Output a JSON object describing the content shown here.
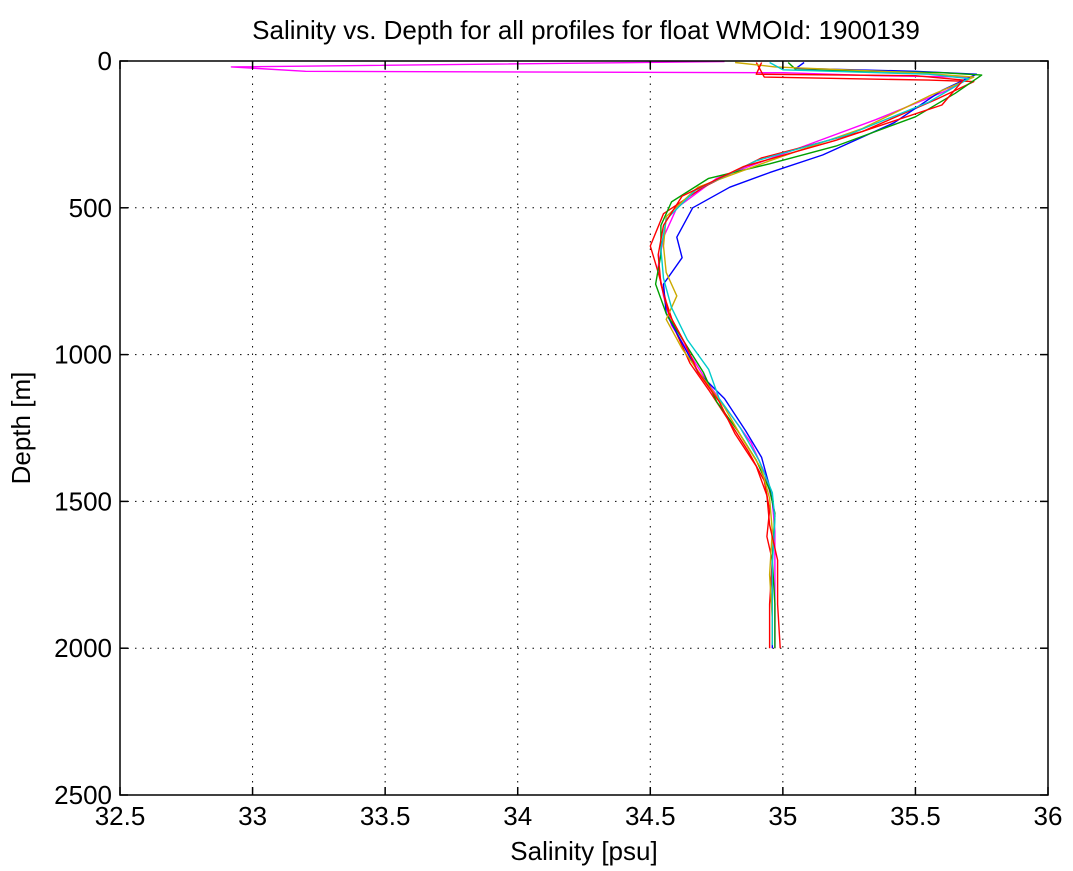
{
  "chart_data": {
    "type": "line",
    "title": "Salinity vs. Depth for all profiles for float WMOId: 1900139",
    "xlabel": "Salinity [psu]",
    "ylabel": "Depth [m]",
    "xlim": [
      32.5,
      36
    ],
    "ylim": [
      0,
      2500
    ],
    "y_reversed": true,
    "x_ticks": [
      32.5,
      33,
      33.5,
      34,
      34.5,
      35,
      35.5,
      36
    ],
    "x_tick_labels": [
      "32.5",
      "33",
      "33.5",
      "34",
      "34.5",
      "35",
      "35.5",
      "36"
    ],
    "y_ticks": [
      0,
      500,
      1000,
      1500,
      2000,
      2500
    ],
    "y_tick_labels": [
      "0",
      "500",
      "1000",
      "1500",
      "2000",
      "2500"
    ],
    "grid": "dotted",
    "legend": "none",
    "series": [
      {
        "color": "#ff00ff",
        "points": [
          [
            34.78,
            2
          ],
          [
            32.92,
            20
          ],
          [
            33.2,
            35
          ],
          [
            35.0,
            40
          ],
          [
            35.35,
            50
          ],
          [
            35.7,
            55
          ],
          [
            35.62,
            100
          ],
          [
            35.35,
            200
          ],
          [
            35.05,
            300
          ],
          [
            34.75,
            400
          ],
          [
            34.6,
            500
          ],
          [
            34.55,
            600
          ],
          [
            34.53,
            700
          ],
          [
            34.55,
            800
          ],
          [
            34.58,
            900
          ],
          [
            34.65,
            1000
          ],
          [
            34.72,
            1100
          ],
          [
            34.8,
            1200
          ],
          [
            34.88,
            1300
          ],
          [
            34.93,
            1400
          ],
          [
            34.96,
            1500
          ],
          [
            34.97,
            1600
          ],
          [
            34.97,
            1800
          ],
          [
            34.97,
            2000
          ]
        ]
      },
      {
        "color": "#ff0000",
        "points": [
          [
            34.9,
            5
          ],
          [
            34.93,
            55
          ],
          [
            35.55,
            65
          ],
          [
            35.72,
            70
          ],
          [
            35.58,
            130
          ],
          [
            35.3,
            240
          ],
          [
            34.92,
            330
          ],
          [
            34.7,
            430
          ],
          [
            34.55,
            520
          ],
          [
            34.5,
            630
          ],
          [
            34.53,
            720
          ],
          [
            34.56,
            820
          ],
          [
            34.6,
            930
          ],
          [
            34.65,
            1030
          ],
          [
            34.72,
            1120
          ],
          [
            34.8,
            1230
          ],
          [
            34.87,
            1330
          ],
          [
            34.93,
            1430
          ],
          [
            34.95,
            1530
          ],
          [
            34.94,
            1620
          ],
          [
            34.96,
            1700
          ],
          [
            34.95,
            1850
          ],
          [
            34.95,
            2000
          ]
        ]
      },
      {
        "color": "#0000ff",
        "points": [
          [
            35.08,
            5
          ],
          [
            35.05,
            25
          ],
          [
            35.5,
            35
          ],
          [
            35.73,
            45
          ],
          [
            35.6,
            100
          ],
          [
            35.42,
            210
          ],
          [
            35.15,
            320
          ],
          [
            34.95,
            380
          ],
          [
            34.8,
            430
          ],
          [
            34.66,
            500
          ],
          [
            34.6,
            600
          ],
          [
            34.62,
            670
          ],
          [
            34.55,
            760
          ],
          [
            34.56,
            860
          ],
          [
            34.62,
            960
          ],
          [
            34.68,
            1060
          ],
          [
            34.78,
            1150
          ],
          [
            34.86,
            1260
          ],
          [
            34.92,
            1350
          ],
          [
            34.95,
            1450
          ],
          [
            34.97,
            1550
          ],
          [
            34.96,
            1700
          ],
          [
            34.96,
            1850
          ],
          [
            34.96,
            2000
          ]
        ]
      },
      {
        "color": "#00a000",
        "points": [
          [
            35.02,
            5
          ],
          [
            35.05,
            30
          ],
          [
            35.6,
            40
          ],
          [
            35.75,
            48
          ],
          [
            35.65,
            110
          ],
          [
            35.5,
            190
          ],
          [
            35.2,
            290
          ],
          [
            34.95,
            350
          ],
          [
            34.72,
            400
          ],
          [
            34.58,
            480
          ],
          [
            34.54,
            560
          ],
          [
            34.54,
            660
          ],
          [
            34.52,
            760
          ],
          [
            34.56,
            860
          ],
          [
            34.63,
            960
          ],
          [
            34.7,
            1060
          ],
          [
            34.75,
            1160
          ],
          [
            34.83,
            1260
          ],
          [
            34.9,
            1360
          ],
          [
            34.95,
            1460
          ],
          [
            34.97,
            1540
          ],
          [
            34.96,
            1700
          ],
          [
            34.97,
            1850
          ],
          [
            34.97,
            2000
          ]
        ]
      },
      {
        "color": "#ccaa00",
        "points": [
          [
            34.82,
            5
          ],
          [
            34.97,
            20
          ],
          [
            35.5,
            40
          ],
          [
            35.72,
            55
          ],
          [
            35.55,
            120
          ],
          [
            35.3,
            230
          ],
          [
            34.95,
            340
          ],
          [
            34.68,
            430
          ],
          [
            34.56,
            530
          ],
          [
            34.55,
            630
          ],
          [
            34.56,
            720
          ],
          [
            34.6,
            800
          ],
          [
            34.56,
            880
          ],
          [
            34.62,
            980
          ],
          [
            34.7,
            1080
          ],
          [
            34.78,
            1180
          ],
          [
            34.85,
            1290
          ],
          [
            34.92,
            1390
          ],
          [
            34.95,
            1490
          ],
          [
            34.96,
            1600
          ],
          [
            34.95,
            1750
          ],
          [
            34.96,
            1900
          ],
          [
            34.96,
            1980
          ]
        ]
      },
      {
        "color": "#00cccc",
        "points": [
          [
            34.95,
            5
          ],
          [
            35.0,
            30
          ],
          [
            35.55,
            45
          ],
          [
            35.7,
            60
          ],
          [
            35.55,
            140
          ],
          [
            35.25,
            250
          ],
          [
            34.9,
            340
          ],
          [
            34.67,
            440
          ],
          [
            34.56,
            540
          ],
          [
            34.54,
            640
          ],
          [
            34.55,
            740
          ],
          [
            34.58,
            840
          ],
          [
            34.64,
            950
          ],
          [
            34.72,
            1050
          ],
          [
            34.76,
            1150
          ],
          [
            34.84,
            1250
          ],
          [
            34.91,
            1360
          ],
          [
            34.96,
            1470
          ],
          [
            34.97,
            1560
          ],
          [
            34.96,
            1720
          ],
          [
            34.96,
            1880
          ],
          [
            34.96,
            1990
          ]
        ]
      },
      {
        "color": "#ff0000",
        "points": [
          [
            34.92,
            5
          ],
          [
            34.9,
            45
          ],
          [
            35.5,
            50
          ],
          [
            35.68,
            65
          ],
          [
            35.6,
            150
          ],
          [
            35.2,
            270
          ],
          [
            34.85,
            360
          ],
          [
            34.62,
            460
          ],
          [
            34.55,
            560
          ],
          [
            34.53,
            660
          ],
          [
            34.54,
            760
          ],
          [
            34.57,
            860
          ],
          [
            34.63,
            960
          ],
          [
            34.68,
            1060
          ],
          [
            34.76,
            1160
          ],
          [
            34.82,
            1270
          ],
          [
            34.9,
            1380
          ],
          [
            34.94,
            1480
          ],
          [
            34.95,
            1580
          ],
          [
            34.98,
            1700
          ],
          [
            34.98,
            1850
          ],
          [
            34.99,
            2000
          ]
        ]
      }
    ]
  }
}
